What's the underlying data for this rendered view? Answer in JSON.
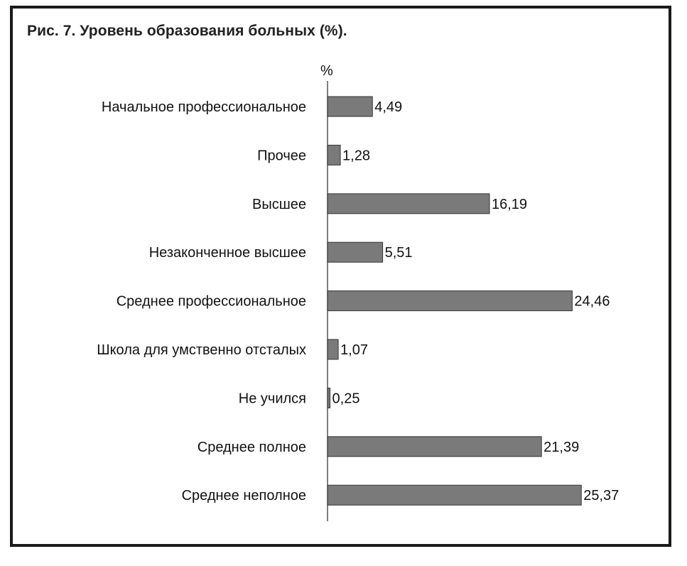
{
  "chart_data": {
    "type": "bar",
    "orientation": "horizontal",
    "title": "Рис. 7. Уровень образования больных (%).",
    "xlabel": "%",
    "categories": [
      "Начальное профессиональное",
      "Прочее",
      "Высшее",
      "Незаконченное высшее",
      "Среднее профессиональное",
      "Школа для умственно отсталых",
      "Не учился",
      "Среднее полное",
      "Среднее неполное"
    ],
    "values": [
      4.49,
      1.28,
      16.19,
      5.51,
      24.46,
      1.07,
      0.25,
      21.39,
      25.37
    ],
    "value_labels": [
      "4,49",
      "1,28",
      "16,19",
      "5,51",
      "24,46",
      "1,07",
      "0,25",
      "21,39",
      "25,37"
    ],
    "xlim": [
      0,
      35
    ],
    "grid": false,
    "legend": "none",
    "bar_color": "#7a7a7a",
    "bar_edge_color": "#333333"
  }
}
